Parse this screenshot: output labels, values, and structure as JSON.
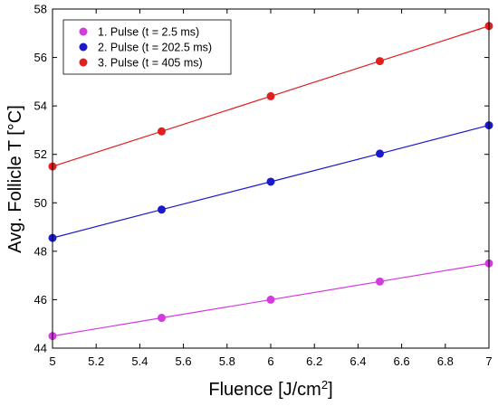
{
  "chart_data": {
    "type": "line",
    "title": "",
    "xlabel_main": "Fluence [J/cm",
    "xlabel_sup": "2",
    "xlabel_end": "]",
    "ylabel": "Avg. Follicle T [°C]",
    "xlim": [
      5,
      7
    ],
    "ylim": [
      44,
      58
    ],
    "xticks": [
      "5",
      "5.2",
      "5.4",
      "5.6",
      "5.8",
      "6",
      "6.2",
      "6.4",
      "6.6",
      "6.8",
      "7"
    ],
    "yticks": [
      "44",
      "46",
      "48",
      "50",
      "52",
      "54",
      "56",
      "58"
    ],
    "x": [
      5,
      5.5,
      6,
      6.5,
      7
    ],
    "series": [
      {
        "name": "1. Pulse (t = 2.5 ms)",
        "color": "#d23cdc",
        "values": [
          44.5,
          45.25,
          46.0,
          46.75,
          47.5
        ]
      },
      {
        "name": "2. Pulse (t = 202.5 ms)",
        "color": "#1a1acc",
        "values": [
          48.55,
          49.72,
          50.87,
          52.03,
          53.2
        ]
      },
      {
        "name": "3. Pulse (t = 405 ms)",
        "color": "#e01f1f",
        "values": [
          51.5,
          52.95,
          54.4,
          55.85,
          57.3
        ]
      }
    ],
    "legend_position": "top-left",
    "grid": false
  }
}
